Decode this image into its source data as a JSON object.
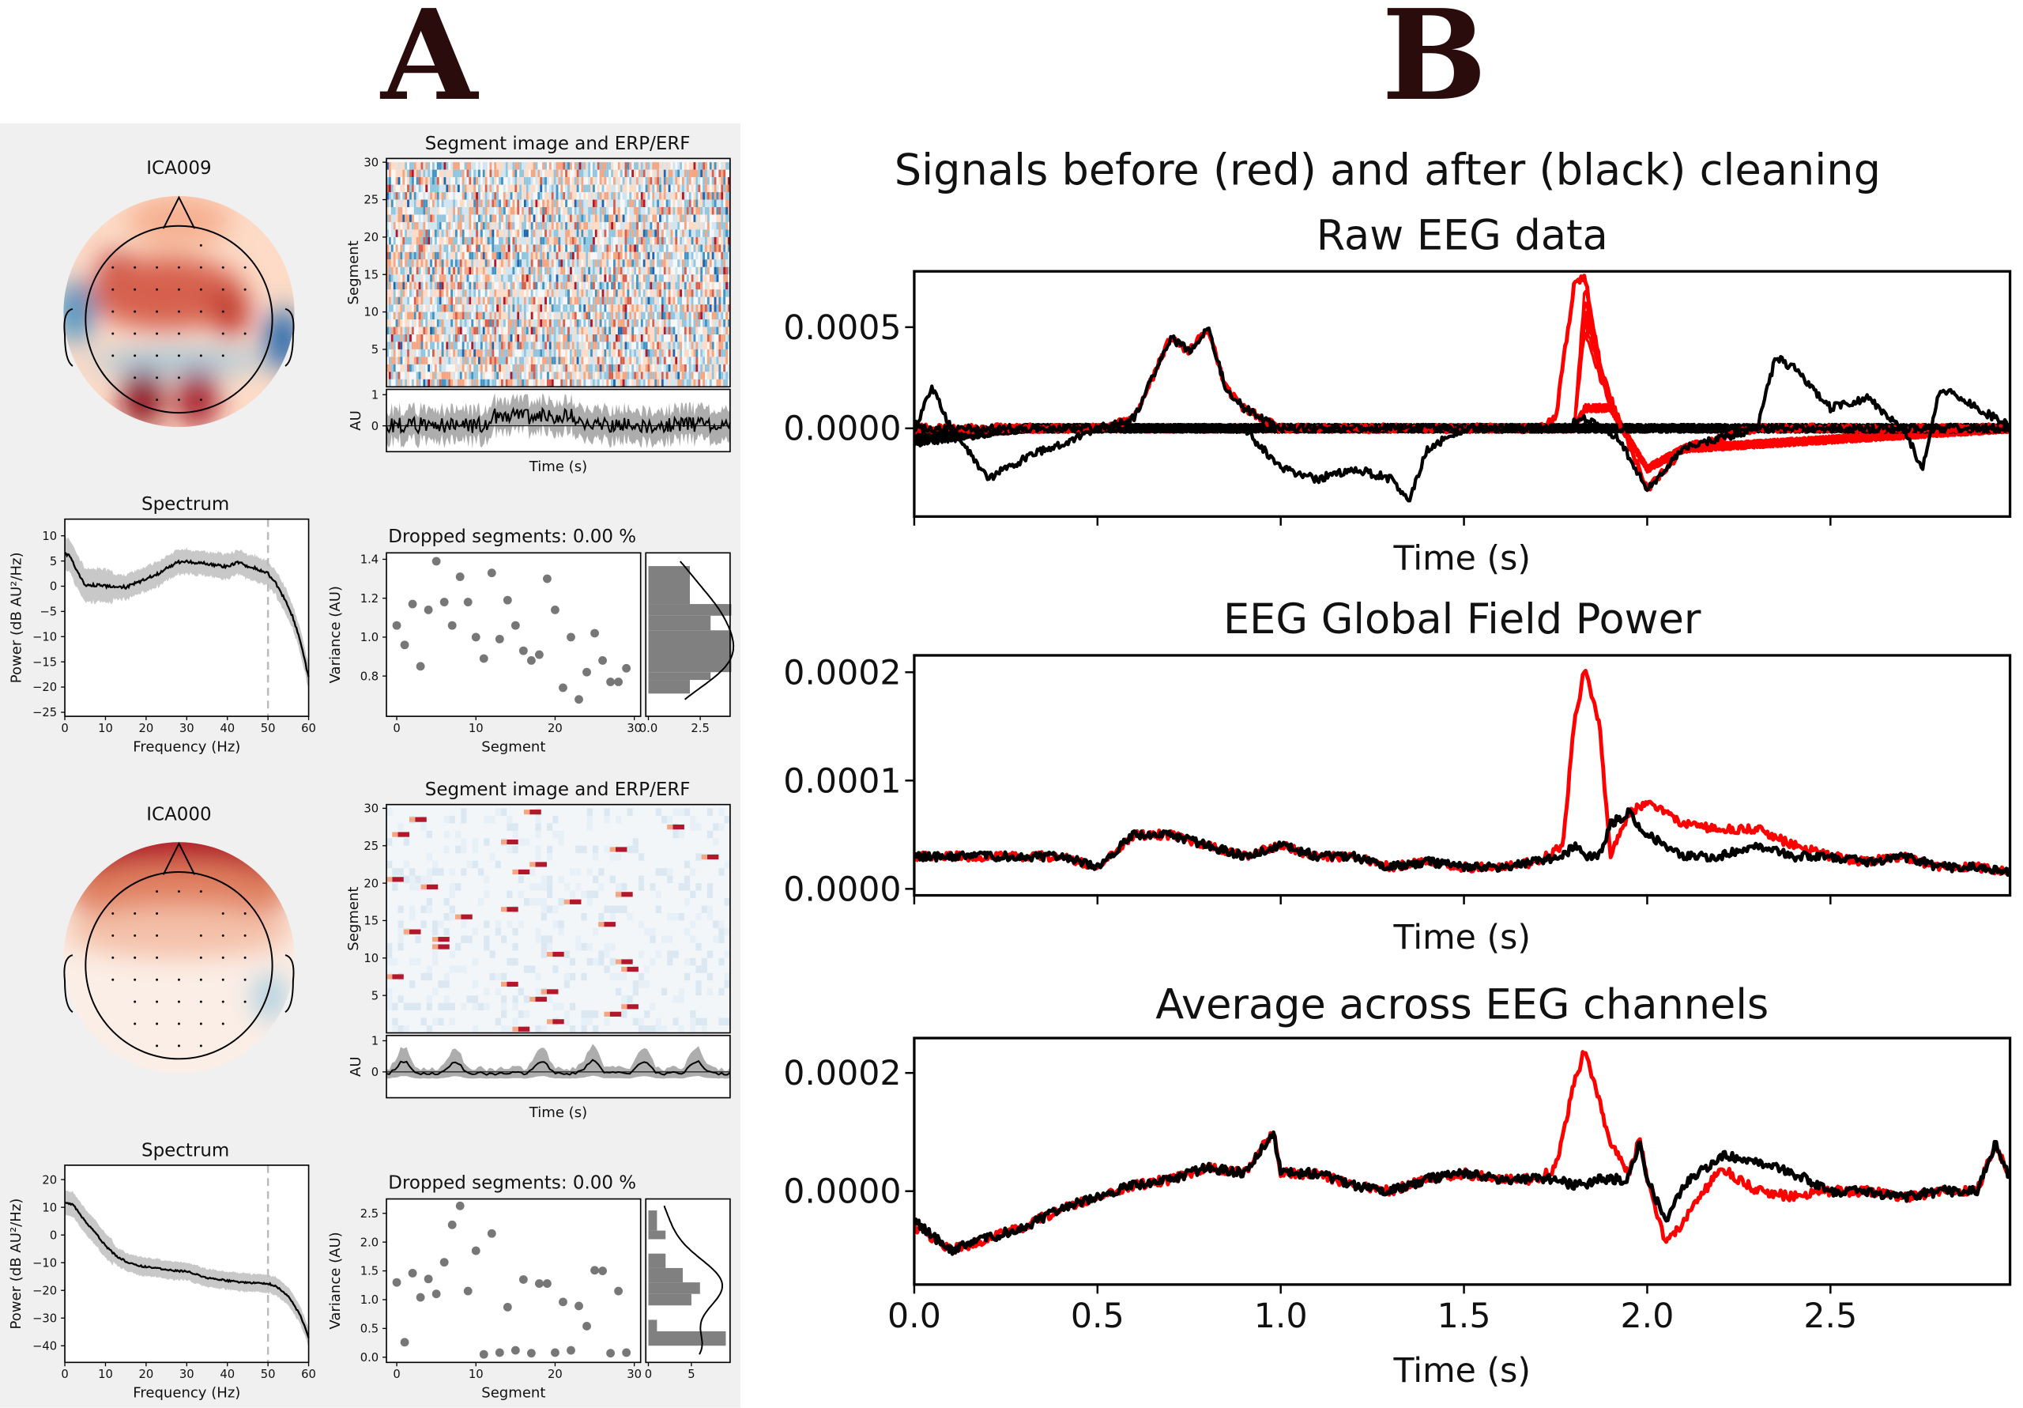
{
  "panel_labels": {
    "a": "A",
    "b": "B"
  },
  "left": {
    "components": [
      {
        "name": "ICA009",
        "image_title": "Segment image and ERP/ERF",
        "spectrum_title": "Spectrum",
        "dropped_title": "Dropped segments: 0.00 %"
      },
      {
        "name": "ICA000",
        "image_title": "Segment image and ERP/ERF",
        "spectrum_title": "Spectrum",
        "dropped_title": "Dropped segments: 0.00 %"
      }
    ]
  },
  "right": {
    "suptitle": "Signals before (red) and after (black) cleaning"
  },
  "colors": {
    "before": "#ff0000",
    "after": "#000000",
    "points": "#777777",
    "band": "#c8c8c8",
    "panel_bg": "#f0f0f0",
    "diverging_pos": "#b2182b",
    "diverging_neg": "#2166ac"
  },
  "chart_data": [
    {
      "id": "seg1",
      "type": "heatmap",
      "ylabel": "Segment",
      "yticks": [
        5,
        10,
        15,
        20,
        25,
        30
      ],
      "ylim": [
        0,
        30.5
      ],
      "colormap": "RdBu_r"
    },
    {
      "id": "erp1",
      "type": "line",
      "ylabel": "AU",
      "xlabel": "Time (s)",
      "yticks": [
        0,
        1
      ],
      "ylim": [
        -0.83,
        1.17
      ]
    },
    {
      "id": "spec1",
      "type": "line",
      "title": "Spectrum",
      "xlabel": "Frequency (Hz)",
      "ylabel": "Power (dB AU²/Hz)",
      "xticks": [
        0,
        10,
        20,
        30,
        40,
        50,
        60
      ],
      "yticks": [
        10,
        5,
        0,
        -5,
        -10,
        -15,
        -20,
        -25
      ],
      "xlim": [
        0,
        60
      ],
      "ylim": [
        -25.8,
        13.3
      ],
      "marker_line_x": 50,
      "x": [
        0,
        1,
        2,
        3,
        5,
        8,
        10,
        13,
        15,
        18,
        20,
        23,
        25,
        28,
        30,
        33,
        35,
        38,
        40,
        43,
        45,
        48,
        50,
        52,
        54,
        56,
        58,
        60
      ],
      "y": [
        6.5,
        6,
        5,
        3,
        0.2,
        0.2,
        0,
        0,
        -0.2,
        0.8,
        1.5,
        2.5,
        3.5,
        4.8,
        5,
        4.5,
        4.5,
        4,
        4,
        4.7,
        4,
        3.2,
        2.5,
        0.5,
        -2.5,
        -6,
        -11,
        -18
      ],
      "band": 2.2
    },
    {
      "id": "scat1",
      "type": "scatter",
      "xlabel": "Segment",
      "ylabel": "Variance (AU)",
      "xticks": [
        0,
        10,
        20,
        30
      ],
      "yticks": [
        0.8,
        1.0,
        1.2,
        1.4
      ],
      "xlim": [
        -1.3,
        30.8
      ],
      "ylim": [
        0.593,
        1.433
      ],
      "x": [
        0,
        1,
        2,
        3,
        4,
        5,
        6,
        7,
        8,
        9,
        10,
        11,
        12,
        13,
        14,
        15,
        16,
        17,
        18,
        19,
        20,
        21,
        22,
        23,
        24,
        25,
        26,
        27,
        28,
        29
      ],
      "y": [
        1.06,
        0.96,
        1.17,
        0.85,
        1.14,
        1.39,
        1.18,
        1.06,
        1.31,
        1.18,
        1.0,
        0.89,
        1.33,
        0.99,
        1.19,
        1.06,
        0.93,
        0.88,
        0.91,
        1.3,
        1.14,
        0.74,
        1.0,
        0.68,
        0.82,
        1.02,
        0.88,
        0.77,
        0.77,
        0.84
      ],
      "hist": {
        "xticks": [
          0.0,
          2.5
        ],
        "xtick_labels": [
          "0.0",
          "2.5"
        ],
        "xlim": [
          -0.125,
          3.94
        ],
        "bin_edges": [
          0.71,
          0.78,
          0.82,
          1.035,
          1.11,
          1.17,
          1.365
        ],
        "counts": [
          2,
          3,
          4,
          3,
          4,
          2
        ]
      }
    },
    {
      "id": "seg2",
      "type": "heatmap",
      "ylabel": "Segment",
      "yticks": [
        5,
        10,
        15,
        20,
        25,
        30
      ],
      "ylim": [
        0,
        30.5
      ],
      "colormap": "RdBu_r"
    },
    {
      "id": "erp2",
      "type": "line",
      "ylabel": "AU",
      "xlabel": "Time (s)",
      "yticks": [
        0,
        1
      ],
      "ylim": [
        -0.83,
        1.17
      ]
    },
    {
      "id": "spec2",
      "type": "line",
      "title": "Spectrum",
      "xlabel": "Frequency (Hz)",
      "ylabel": "Power (dB AU²/Hz)",
      "xticks": [
        0,
        10,
        20,
        30,
        40,
        50,
        60
      ],
      "yticks": [
        20,
        10,
        0,
        -10,
        -20,
        -30,
        -40
      ],
      "xlim": [
        0,
        60
      ],
      "ylim": [
        -46,
        25.2
      ],
      "marker_line_x": 50,
      "x": [
        0,
        2,
        3,
        5,
        8,
        10,
        13,
        15,
        18,
        20,
        23,
        25,
        28,
        30,
        33,
        35,
        38,
        40,
        43,
        45,
        48,
        50,
        52,
        55,
        58,
        60
      ],
      "y": [
        11.5,
        11,
        9,
        5,
        0,
        -4,
        -8,
        -9.5,
        -11,
        -11.5,
        -12,
        -12.5,
        -13,
        -13,
        -14.5,
        -15.5,
        -16,
        -16.5,
        -17,
        -17.2,
        -17.5,
        -17.5,
        -18.5,
        -22,
        -29,
        -37
      ],
      "band": 3
    },
    {
      "id": "scat2",
      "type": "scatter",
      "xlabel": "Segment",
      "ylabel": "Variance (AU)",
      "xticks": [
        0,
        10,
        20,
        30
      ],
      "yticks": [
        0.0,
        0.5,
        1.0,
        1.5,
        2.0,
        2.5
      ],
      "xlim": [
        -1.3,
        30.8
      ],
      "ylim": [
        -0.09,
        2.75
      ],
      "x": [
        0,
        1,
        2,
        3,
        4,
        5,
        6,
        7,
        8,
        9,
        10,
        11,
        12,
        13,
        14,
        15,
        16,
        17,
        18,
        19,
        20,
        21,
        22,
        23,
        24,
        25,
        26,
        27,
        28,
        29
      ],
      "y": [
        1.3,
        0.26,
        1.46,
        1.04,
        1.36,
        1.1,
        1.65,
        2.3,
        2.63,
        1.15,
        1.85,
        0.05,
        2.15,
        0.08,
        0.87,
        0.12,
        1.35,
        0.07,
        1.28,
        1.28,
        0.08,
        0.96,
        0.12,
        0.89,
        0.54,
        1.51,
        1.5,
        0.07,
        1.15,
        0.08
      ],
      "hist": {
        "xticks": [
          0,
          5
        ],
        "xtick_labels": [
          "0",
          "5"
        ],
        "xlim": [
          -0.3,
          9.5
        ],
        "bin_edges": [
          0.2,
          0.45,
          0.65,
          0.9,
          1.1,
          1.3,
          1.55,
          1.8,
          2.05,
          2.2,
          2.55
        ],
        "counts": [
          9,
          1,
          0,
          5,
          6,
          4,
          2,
          0,
          2,
          1
        ]
      }
    },
    {
      "id": "raw",
      "type": "line",
      "title": "Raw EEG data",
      "xlabel": "Time (s)",
      "yticks": [
        0.0,
        0.0005
      ],
      "ytick_labels": [
        "0.0000",
        "0.0005"
      ],
      "xticks": [
        0,
        0.5,
        1,
        1.5,
        2,
        2.5
      ],
      "xlim": [
        0,
        2.99
      ],
      "ylim": [
        -0.000436,
        0.000776
      ],
      "series": [
        {
          "color": "before",
          "x": [
            0,
            0.5,
            0.6,
            0.7,
            0.75,
            0.8,
            0.85,
            0.9,
            1.0,
            1.5,
            1.7,
            1.75,
            1.8,
            1.83,
            1.87,
            1.92,
            2.0,
            2.1,
            2.3,
            3.0
          ],
          "y": [
            0,
            0,
            5e-05,
            0.00045,
            0.00038,
            0.0005,
            0.0002,
            0.0001,
            0,
            0,
            0,
            5e-05,
            0.0007,
            0.00075,
            0.0003,
            5e-05,
            -0.0003,
            -0.0001,
            0,
            0
          ]
        },
        {
          "color": "after",
          "x": [
            0,
            0.5,
            0.6,
            0.7,
            0.75,
            0.8,
            0.85,
            0.9,
            1.0,
            1.5,
            1.7,
            1.75,
            1.8,
            1.83,
            1.87,
            1.92,
            2.0,
            2.1,
            2.3,
            3.0
          ],
          "y": [
            0,
            0,
            5e-05,
            0.00045,
            0.00038,
            0.0005,
            0.0002,
            0.0001,
            0,
            0,
            0,
            0.0,
            3e-05,
            5e-05,
            0.0,
            -5e-05,
            -0.0003,
            -0.0001,
            0,
            0
          ]
        },
        {
          "color": "after",
          "x": [
            0,
            0.05,
            0.1,
            0.2,
            0.3,
            0.5,
            0.9,
            1.0,
            1.1,
            1.2,
            1.3,
            1.35,
            1.4,
            1.5,
            2.3,
            2.35,
            2.4,
            2.5,
            2.6,
            2.7,
            2.75,
            2.8,
            2.9,
            3.0
          ],
          "y": [
            0,
            0.0002,
            0,
            -0.00025,
            -0.00015,
            0,
            0,
            -0.0002,
            -0.00025,
            -0.0002,
            -0.00025,
            -0.00035,
            -0.0001,
            0,
            0,
            0.00035,
            0.0003,
            0.0001,
            0.00015,
            0,
            -0.0002,
            0.0002,
            0.0001,
            0
          ]
        }
      ]
    },
    {
      "id": "gfp",
      "type": "line",
      "title": "EEG Global Field Power",
      "xlabel": "Time (s)",
      "yticks": [
        0.0,
        0.0001,
        0.0002
      ],
      "ytick_labels": [
        "0.0000",
        "0.0001",
        "0.0002"
      ],
      "xticks": [
        0,
        0.5,
        1,
        1.5,
        2,
        2.5
      ],
      "xlim": [
        0,
        2.99
      ],
      "ylim": [
        -6e-06,
        0.0002156
      ],
      "series": [
        {
          "color": "before",
          "x": [
            0,
            0.1,
            0.2,
            0.3,
            0.4,
            0.5,
            0.6,
            0.7,
            0.8,
            0.9,
            1.0,
            1.1,
            1.2,
            1.3,
            1.4,
            1.5,
            1.6,
            1.7,
            1.77,
            1.8,
            1.83,
            1.87,
            1.9,
            1.95,
            2.0,
            2.1,
            2.2,
            2.3,
            2.4,
            2.5,
            2.6,
            2.7,
            2.8,
            2.9,
            2.99
          ],
          "y": [
            3e-05,
            3e-05,
            3e-05,
            3e-05,
            3e-05,
            2e-05,
            5e-05,
            5e-05,
            4e-05,
            3e-05,
            4e-05,
            3e-05,
            3e-05,
            2e-05,
            2.5e-05,
            2e-05,
            2e-05,
            2.5e-05,
            4e-05,
            0.00015,
            0.000205,
            0.00015,
            3e-05,
            7e-05,
            8e-05,
            6e-05,
            5.5e-05,
            5.5e-05,
            4e-05,
            3e-05,
            2.5e-05,
            3e-05,
            2e-05,
            2e-05,
            1.5e-05
          ]
        },
        {
          "color": "after",
          "x": [
            0,
            0.1,
            0.2,
            0.3,
            0.4,
            0.5,
            0.6,
            0.7,
            0.8,
            0.9,
            1.0,
            1.1,
            1.2,
            1.3,
            1.4,
            1.5,
            1.6,
            1.7,
            1.77,
            1.8,
            1.83,
            1.87,
            1.9,
            1.95,
            2.0,
            2.1,
            2.2,
            2.3,
            2.4,
            2.5,
            2.6,
            2.7,
            2.8,
            2.9,
            2.99
          ],
          "y": [
            3e-05,
            3e-05,
            3e-05,
            3e-05,
            3e-05,
            2e-05,
            5e-05,
            5e-05,
            4e-05,
            3e-05,
            4e-05,
            3e-05,
            3e-05,
            2e-05,
            2.5e-05,
            2e-05,
            2e-05,
            2.5e-05,
            3e-05,
            4e-05,
            3e-05,
            3e-05,
            6e-05,
            7e-05,
            5e-05,
            3e-05,
            3e-05,
            4e-05,
            3e-05,
            3e-05,
            2.5e-05,
            3e-05,
            2e-05,
            2e-05,
            1.5e-05
          ]
        }
      ]
    },
    {
      "id": "avg",
      "type": "line",
      "title": "Average across EEG channels",
      "xlabel": "Time (s)",
      "yticks": [
        0.0,
        0.0002
      ],
      "ytick_labels": [
        "0.0000",
        "0.0002"
      ],
      "xticks": [
        0,
        0.5,
        1,
        1.5,
        2,
        2.5
      ],
      "xtick_labels": [
        "0.0",
        "0.5",
        "1.0",
        "1.5",
        "2.0",
        "2.5"
      ],
      "xlim": [
        0,
        2.99
      ],
      "ylim": [
        -0.000158,
        0.000259
      ],
      "series": [
        {
          "color": "before",
          "x": [
            0,
            0.1,
            0.2,
            0.3,
            0.4,
            0.5,
            0.6,
            0.7,
            0.8,
            0.9,
            0.98,
            1.0,
            1.1,
            1.2,
            1.3,
            1.4,
            1.5,
            1.6,
            1.7,
            1.75,
            1.8,
            1.83,
            1.87,
            1.9,
            1.95,
            1.98,
            2.0,
            2.05,
            2.1,
            2.2,
            2.3,
            2.4,
            2.5,
            2.6,
            2.7,
            2.8,
            2.9,
            2.95,
            2.99
          ],
          "y": [
            -6e-05,
            -0.0001,
            -8e-05,
            -6e-05,
            -3e-05,
            -1e-05,
            1e-05,
            2e-05,
            4e-05,
            3e-05,
            0.0001,
            3e-05,
            3e-05,
            1e-05,
            0,
            2e-05,
            3e-05,
            2e-05,
            2e-05,
            4e-05,
            0.00018,
            0.00024,
            0.00015,
            8e-05,
            3e-05,
            9e-05,
            2e-05,
            -9e-05,
            -5e-05,
            4e-05,
            0,
            -1e-05,
            0,
            0,
            -1e-05,
            0,
            0,
            8e-05,
            2e-05
          ]
        },
        {
          "color": "after",
          "x": [
            0,
            0.1,
            0.2,
            0.3,
            0.4,
            0.5,
            0.6,
            0.7,
            0.8,
            0.9,
            0.98,
            1.0,
            1.1,
            1.2,
            1.3,
            1.4,
            1.5,
            1.6,
            1.7,
            1.75,
            1.8,
            1.83,
            1.87,
            1.9,
            1.95,
            1.98,
            2.0,
            2.05,
            2.1,
            2.2,
            2.3,
            2.4,
            2.5,
            2.6,
            2.7,
            2.8,
            2.9,
            2.95,
            2.99
          ],
          "y": [
            -5e-05,
            -0.0001,
            -8e-05,
            -6e-05,
            -3e-05,
            -1e-05,
            1e-05,
            2e-05,
            4e-05,
            3e-05,
            0.0001,
            3e-05,
            3e-05,
            1e-05,
            0,
            2e-05,
            3e-05,
            2e-05,
            2e-05,
            2e-05,
            1e-05,
            1e-05,
            2e-05,
            2e-05,
            2e-05,
            9e-05,
            2e-05,
            -5e-05,
            1e-05,
            6e-05,
            5e-05,
            3e-05,
            0,
            0,
            -1e-05,
            0,
            0,
            8e-05,
            2e-05
          ]
        }
      ]
    }
  ]
}
